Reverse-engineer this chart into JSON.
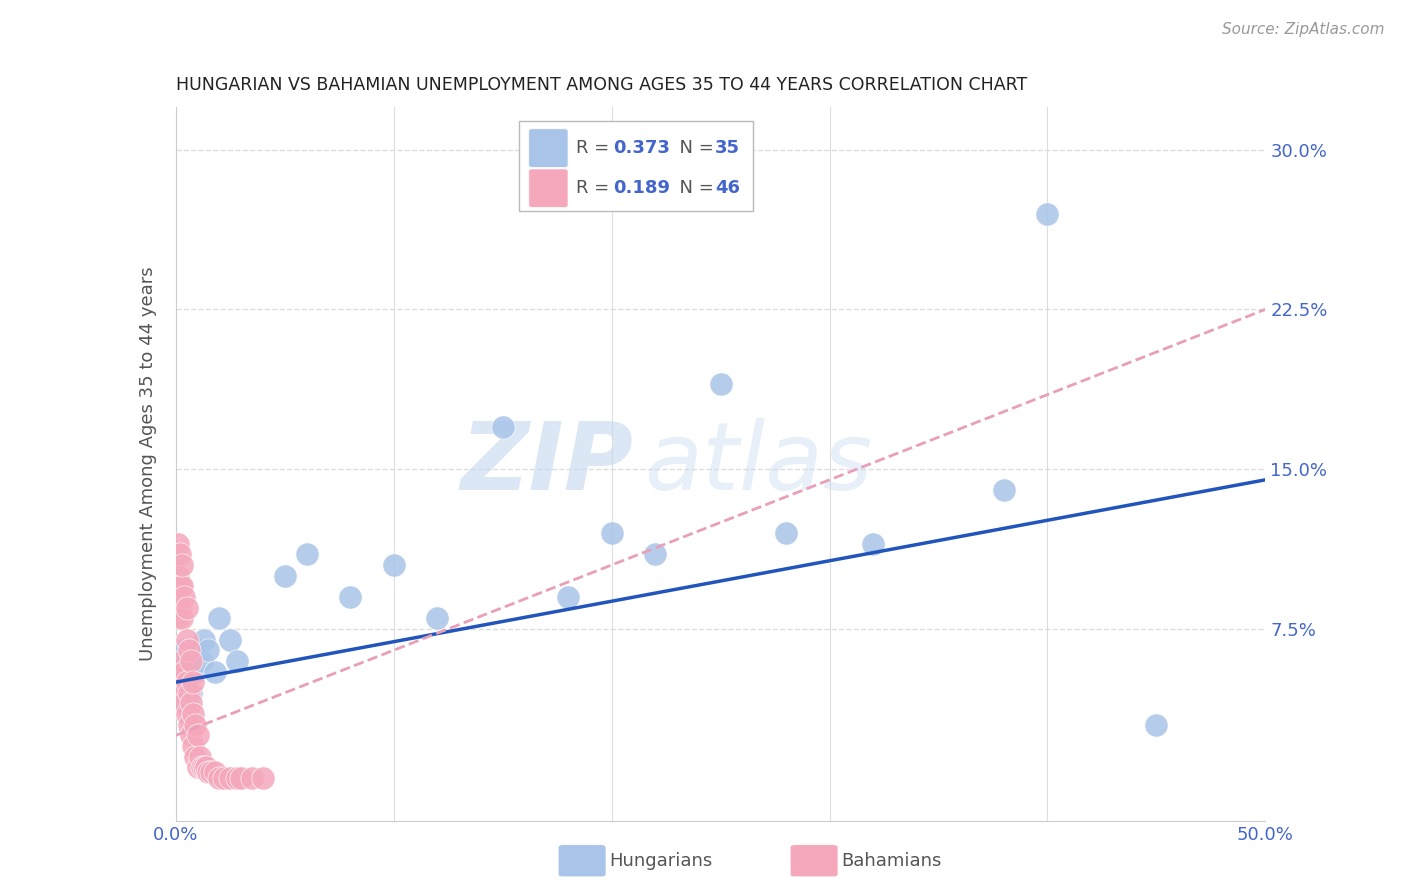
{
  "title": "HUNGARIAN VS BAHAMIAN UNEMPLOYMENT AMONG AGES 35 TO 44 YEARS CORRELATION CHART",
  "source": "Source: ZipAtlas.com",
  "ylabel": "Unemployment Among Ages 35 to 44 years",
  "xlim": [
    0.0,
    0.5
  ],
  "ylim": [
    -0.015,
    0.32
  ],
  "yticks": [
    0.075,
    0.15,
    0.225,
    0.3
  ],
  "ytick_labels": [
    "7.5%",
    "15.0%",
    "22.5%",
    "30.0%"
  ],
  "xticks": [
    0.0,
    0.1,
    0.2,
    0.3,
    0.4,
    0.5
  ],
  "xtick_labels": [
    "0.0%",
    "",
    "",
    "",
    "",
    "50.0%"
  ],
  "hungarian_color": "#a8c4e8",
  "bahamian_color": "#f5a8bc",
  "hungarian_line_color": "#2255bb",
  "bahamian_line_color": "#e8a0b8",
  "watermark_zip": "ZIP",
  "watermark_atlas": "atlas",
  "background_color": "#ffffff",
  "grid_color": "#dddddd",
  "title_color": "#222222",
  "tick_color": "#4466cc",
  "ylabel_color": "#555555",
  "hung_trend_x0": 0.0,
  "hung_trend_y0": 0.05,
  "hung_trend_x1": 0.5,
  "hung_trend_y1": 0.145,
  "bah_trend_x0": 0.0,
  "bah_trend_y0": 0.025,
  "bah_trend_x1": 0.5,
  "bah_trend_y1": 0.225,
  "hungarians_x": [
    0.001,
    0.002,
    0.002,
    0.003,
    0.003,
    0.004,
    0.004,
    0.005,
    0.006,
    0.007,
    0.008,
    0.009,
    0.01,
    0.012,
    0.013,
    0.015,
    0.018,
    0.02,
    0.025,
    0.028,
    0.05,
    0.06,
    0.08,
    0.1,
    0.12,
    0.15,
    0.18,
    0.2,
    0.22,
    0.25,
    0.28,
    0.32,
    0.38,
    0.4,
    0.45
  ],
  "hungarians_y": [
    0.05,
    0.045,
    0.06,
    0.055,
    0.04,
    0.065,
    0.05,
    0.06,
    0.055,
    0.045,
    0.06,
    0.055,
    0.065,
    0.06,
    0.07,
    0.065,
    0.055,
    0.08,
    0.07,
    0.06,
    0.1,
    0.11,
    0.09,
    0.105,
    0.08,
    0.17,
    0.09,
    0.12,
    0.11,
    0.19,
    0.12,
    0.115,
    0.14,
    0.27,
    0.03
  ],
  "bahamians_x": [
    0.001,
    0.001,
    0.001,
    0.002,
    0.002,
    0.002,
    0.002,
    0.003,
    0.003,
    0.003,
    0.003,
    0.003,
    0.004,
    0.004,
    0.004,
    0.005,
    0.005,
    0.005,
    0.005,
    0.006,
    0.006,
    0.006,
    0.007,
    0.007,
    0.007,
    0.008,
    0.008,
    0.008,
    0.009,
    0.009,
    0.01,
    0.01,
    0.011,
    0.012,
    0.013,
    0.014,
    0.015,
    0.016,
    0.018,
    0.02,
    0.022,
    0.025,
    0.028,
    0.03,
    0.035,
    0.04
  ],
  "bahamians_y": [
    0.08,
    0.1,
    0.115,
    0.05,
    0.085,
    0.095,
    0.11,
    0.045,
    0.06,
    0.08,
    0.095,
    0.105,
    0.04,
    0.055,
    0.09,
    0.035,
    0.05,
    0.07,
    0.085,
    0.03,
    0.045,
    0.065,
    0.025,
    0.04,
    0.06,
    0.02,
    0.035,
    0.05,
    0.015,
    0.03,
    0.01,
    0.025,
    0.015,
    0.01,
    0.01,
    0.01,
    0.008,
    0.008,
    0.008,
    0.005,
    0.005,
    0.005,
    0.005,
    0.005,
    0.005,
    0.005
  ]
}
